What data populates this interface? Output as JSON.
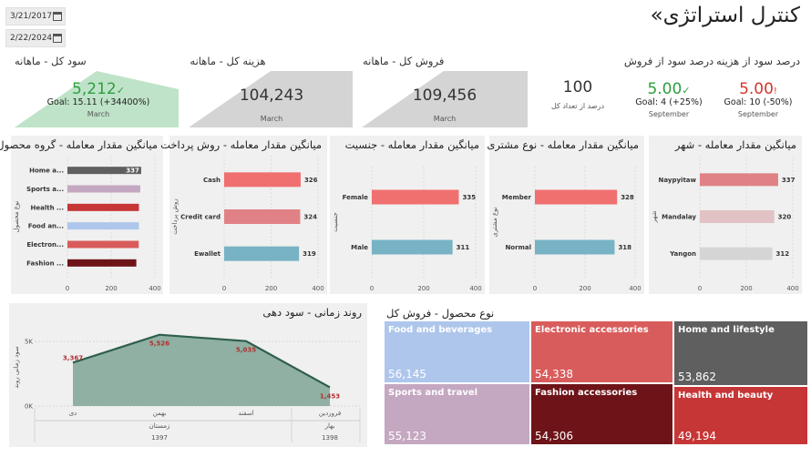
{
  "header": {
    "title": "«کنترل استراتژی",
    "date_start": "3/21/2017",
    "date_end": "2/22/2024"
  },
  "kpis": {
    "profit": {
      "title": "سود کل - ماهانه",
      "value": "5,212",
      "goal": "Goal: 15.11 (+34400%)",
      "period": "March",
      "status_color": "#2e9e3e",
      "level": 1.0
    },
    "cost": {
      "title": "هزینه کل - ماهانه",
      "value": "104,243",
      "period": "March"
    },
    "sales": {
      "title": "فروش کل - ماهانه",
      "value": "109,456",
      "period": "March"
    },
    "count": {
      "value": "100",
      "label": "درصد از تعداد کل"
    },
    "margin_sales": {
      "title": "درصد سود از فروش",
      "value": "5.00",
      "goal": "Goal: 4 (+25%)",
      "period": "September",
      "status_color": "#2e9e3e"
    },
    "margin_cost": {
      "title": "درصد سود از هزینه",
      "value": "5.00",
      "goal": "Goal: 10 (-50%)",
      "period": "September",
      "status_color": "#d9342b"
    }
  },
  "chart_data": [
    {
      "type": "bar",
      "orientation": "horizontal",
      "title": "میانگین مقدار معامله - گروه محصول",
      "ylabel": "نوع محصول",
      "categories": [
        "Home a...",
        "Sports a...",
        "Health ...",
        "Food an...",
        "Electron...",
        "Fashion ..."
      ],
      "values": [
        337,
        333,
        327,
        327,
        326,
        315
      ],
      "value_labels": [
        "337",
        "",
        "",
        "",
        "",
        ""
      ],
      "colors": [
        "#5f5f5f",
        "#c4a7c0",
        "#c73636",
        "#aec6ec",
        "#d95c5c",
        "#6e1419"
      ],
      "xlim": [
        0,
        400
      ],
      "xticks": [
        "0",
        "200",
        "400"
      ]
    },
    {
      "type": "bar",
      "orientation": "horizontal",
      "title": "میانگین مقدار معامله - روش پرداخت",
      "ylabel": "روش پرداخت",
      "categories": [
        "Cash",
        "Credit card",
        "Ewallet"
      ],
      "values": [
        326,
        324,
        319
      ],
      "value_labels": [
        "326",
        "324",
        "319"
      ],
      "colors": [
        "#f07070",
        "#e08285",
        "#77b3c4"
      ],
      "xlim": [
        0,
        400
      ],
      "xticks": [
        "0",
        "200",
        "400"
      ]
    },
    {
      "type": "bar",
      "orientation": "horizontal",
      "title": "میانگین مقدار معامله - جنسیت",
      "ylabel": "جنسیت",
      "categories": [
        "Female",
        "Male"
      ],
      "values": [
        335,
        311
      ],
      "value_labels": [
        "335",
        "311"
      ],
      "colors": [
        "#f07070",
        "#77b3c4"
      ],
      "xlim": [
        0,
        400
      ],
      "xticks": [
        "0",
        "200",
        "400"
      ]
    },
    {
      "type": "bar",
      "orientation": "horizontal",
      "title": "میانگین مقدار معامله - نوع مشتری",
      "ylabel": "نوع مشتری",
      "categories": [
        "Member",
        "Normal"
      ],
      "values": [
        328,
        318
      ],
      "value_labels": [
        "328",
        "318"
      ],
      "colors": [
        "#f07070",
        "#77b3c4"
      ],
      "xlim": [
        0,
        400
      ],
      "xticks": [
        "0",
        "200",
        "400"
      ]
    },
    {
      "type": "bar",
      "orientation": "horizontal",
      "title": "میانگین مقدار معامله - شهر",
      "ylabel": "شهر",
      "categories": [
        "Naypyitaw",
        "Mandalay",
        "Yangon"
      ],
      "values": [
        337,
        320,
        312
      ],
      "value_labels": [
        "337",
        "320",
        "312"
      ],
      "colors": [
        "#e08285",
        "#e2c2c4",
        "#d5d5d5"
      ],
      "xlim": [
        0,
        400
      ],
      "xticks": [
        "0",
        "200",
        "400"
      ]
    },
    {
      "type": "area",
      "title": "روند زمانی - سود دهی",
      "ylabel": "سود زمانی روند",
      "categories": [
        "دی",
        "بهمن",
        "اسفند",
        "فروردین"
      ],
      "values": [
        3367,
        5526,
        5035,
        1453
      ],
      "value_labels": [
        "3,367",
        "5,526",
        "5,035",
        "1,453"
      ],
      "group_labels": [
        {
          "season": "زمستان",
          "year": "1397"
        },
        {
          "season": "بهار",
          "year": "1398"
        }
      ],
      "ylim": [
        0,
        6000
      ],
      "yticks": [
        {
          "v": 0,
          "label": "0K"
        },
        {
          "v": 5000,
          "label": "5K"
        }
      ],
      "fill_color": "#8fb0a2",
      "line_color": "#2f5e4c",
      "label_color": "#b03030"
    },
    {
      "type": "treemap",
      "title": "نوع محصول - فروش کل",
      "items": [
        {
          "name": "Food and beverages",
          "value": 56145,
          "label": "56,145",
          "color": "#aec6ec"
        },
        {
          "name": "Sports and travel",
          "value": 55123,
          "label": "55,123",
          "color": "#c4a7c0"
        },
        {
          "name": "Electronic accessories",
          "value": 54338,
          "label": "54,338",
          "color": "#d95c5c"
        },
        {
          "name": "Fashion accessories",
          "value": 54306,
          "label": "54,306",
          "color": "#6e1419"
        },
        {
          "name": "Home and lifestyle",
          "value": 53862,
          "label": "53,862",
          "color": "#5f5f5f"
        },
        {
          "name": "Health and beauty",
          "value": 49194,
          "label": "49,194",
          "color": "#c73636"
        }
      ]
    }
  ]
}
